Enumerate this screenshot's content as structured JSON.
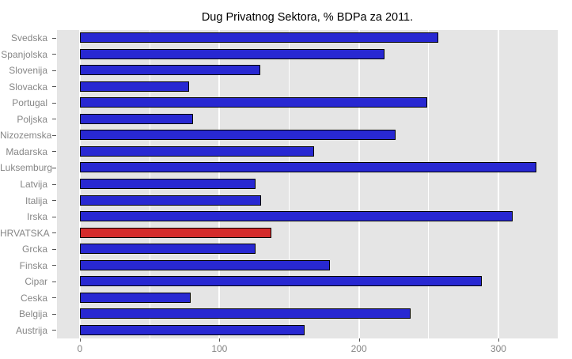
{
  "title": "Dug Privatnog Sektora, % BDPa za 2011.",
  "chart_data": {
    "type": "bar",
    "orientation": "horizontal",
    "title": "Dug Privatnog Sektora, % BDPa za 2011.",
    "xlabel": "",
    "ylabel": "",
    "categories": [
      "Svedska",
      "Spanjolska",
      "Slovenija",
      "Slovacka",
      "Portugal",
      "Poljska",
      "Nizozemska",
      "Madarska",
      "Luksemburg",
      "Latvija",
      "Italija",
      "Irska",
      "HRVATSKA",
      "Grcka",
      "Finska",
      "Cipar",
      "Ceska",
      "Belgija",
      "Austrija"
    ],
    "values": [
      256,
      217,
      128,
      77,
      248,
      80,
      225,
      167,
      326,
      125,
      129,
      309,
      136,
      125,
      178,
      287,
      78,
      236,
      160
    ],
    "highlight_category": "HRVATSKA",
    "bar_color": "#2828d2",
    "highlight_color": "#d42b2b",
    "bar_border_color": "#000000",
    "panel_background": "#e5e5e5",
    "grid_color": "#ffffff",
    "axis_text_color": "#868686",
    "title_color": "#000000",
    "xlim": [
      -16.45,
      342.55
    ],
    "x_ticks_major": [
      0,
      100,
      200,
      300
    ],
    "x_ticks_minor": [
      50,
      150,
      250
    ],
    "x_tick_labels": [
      "0",
      "100",
      "200",
      "300"
    ],
    "grid": true,
    "legend": false
  }
}
